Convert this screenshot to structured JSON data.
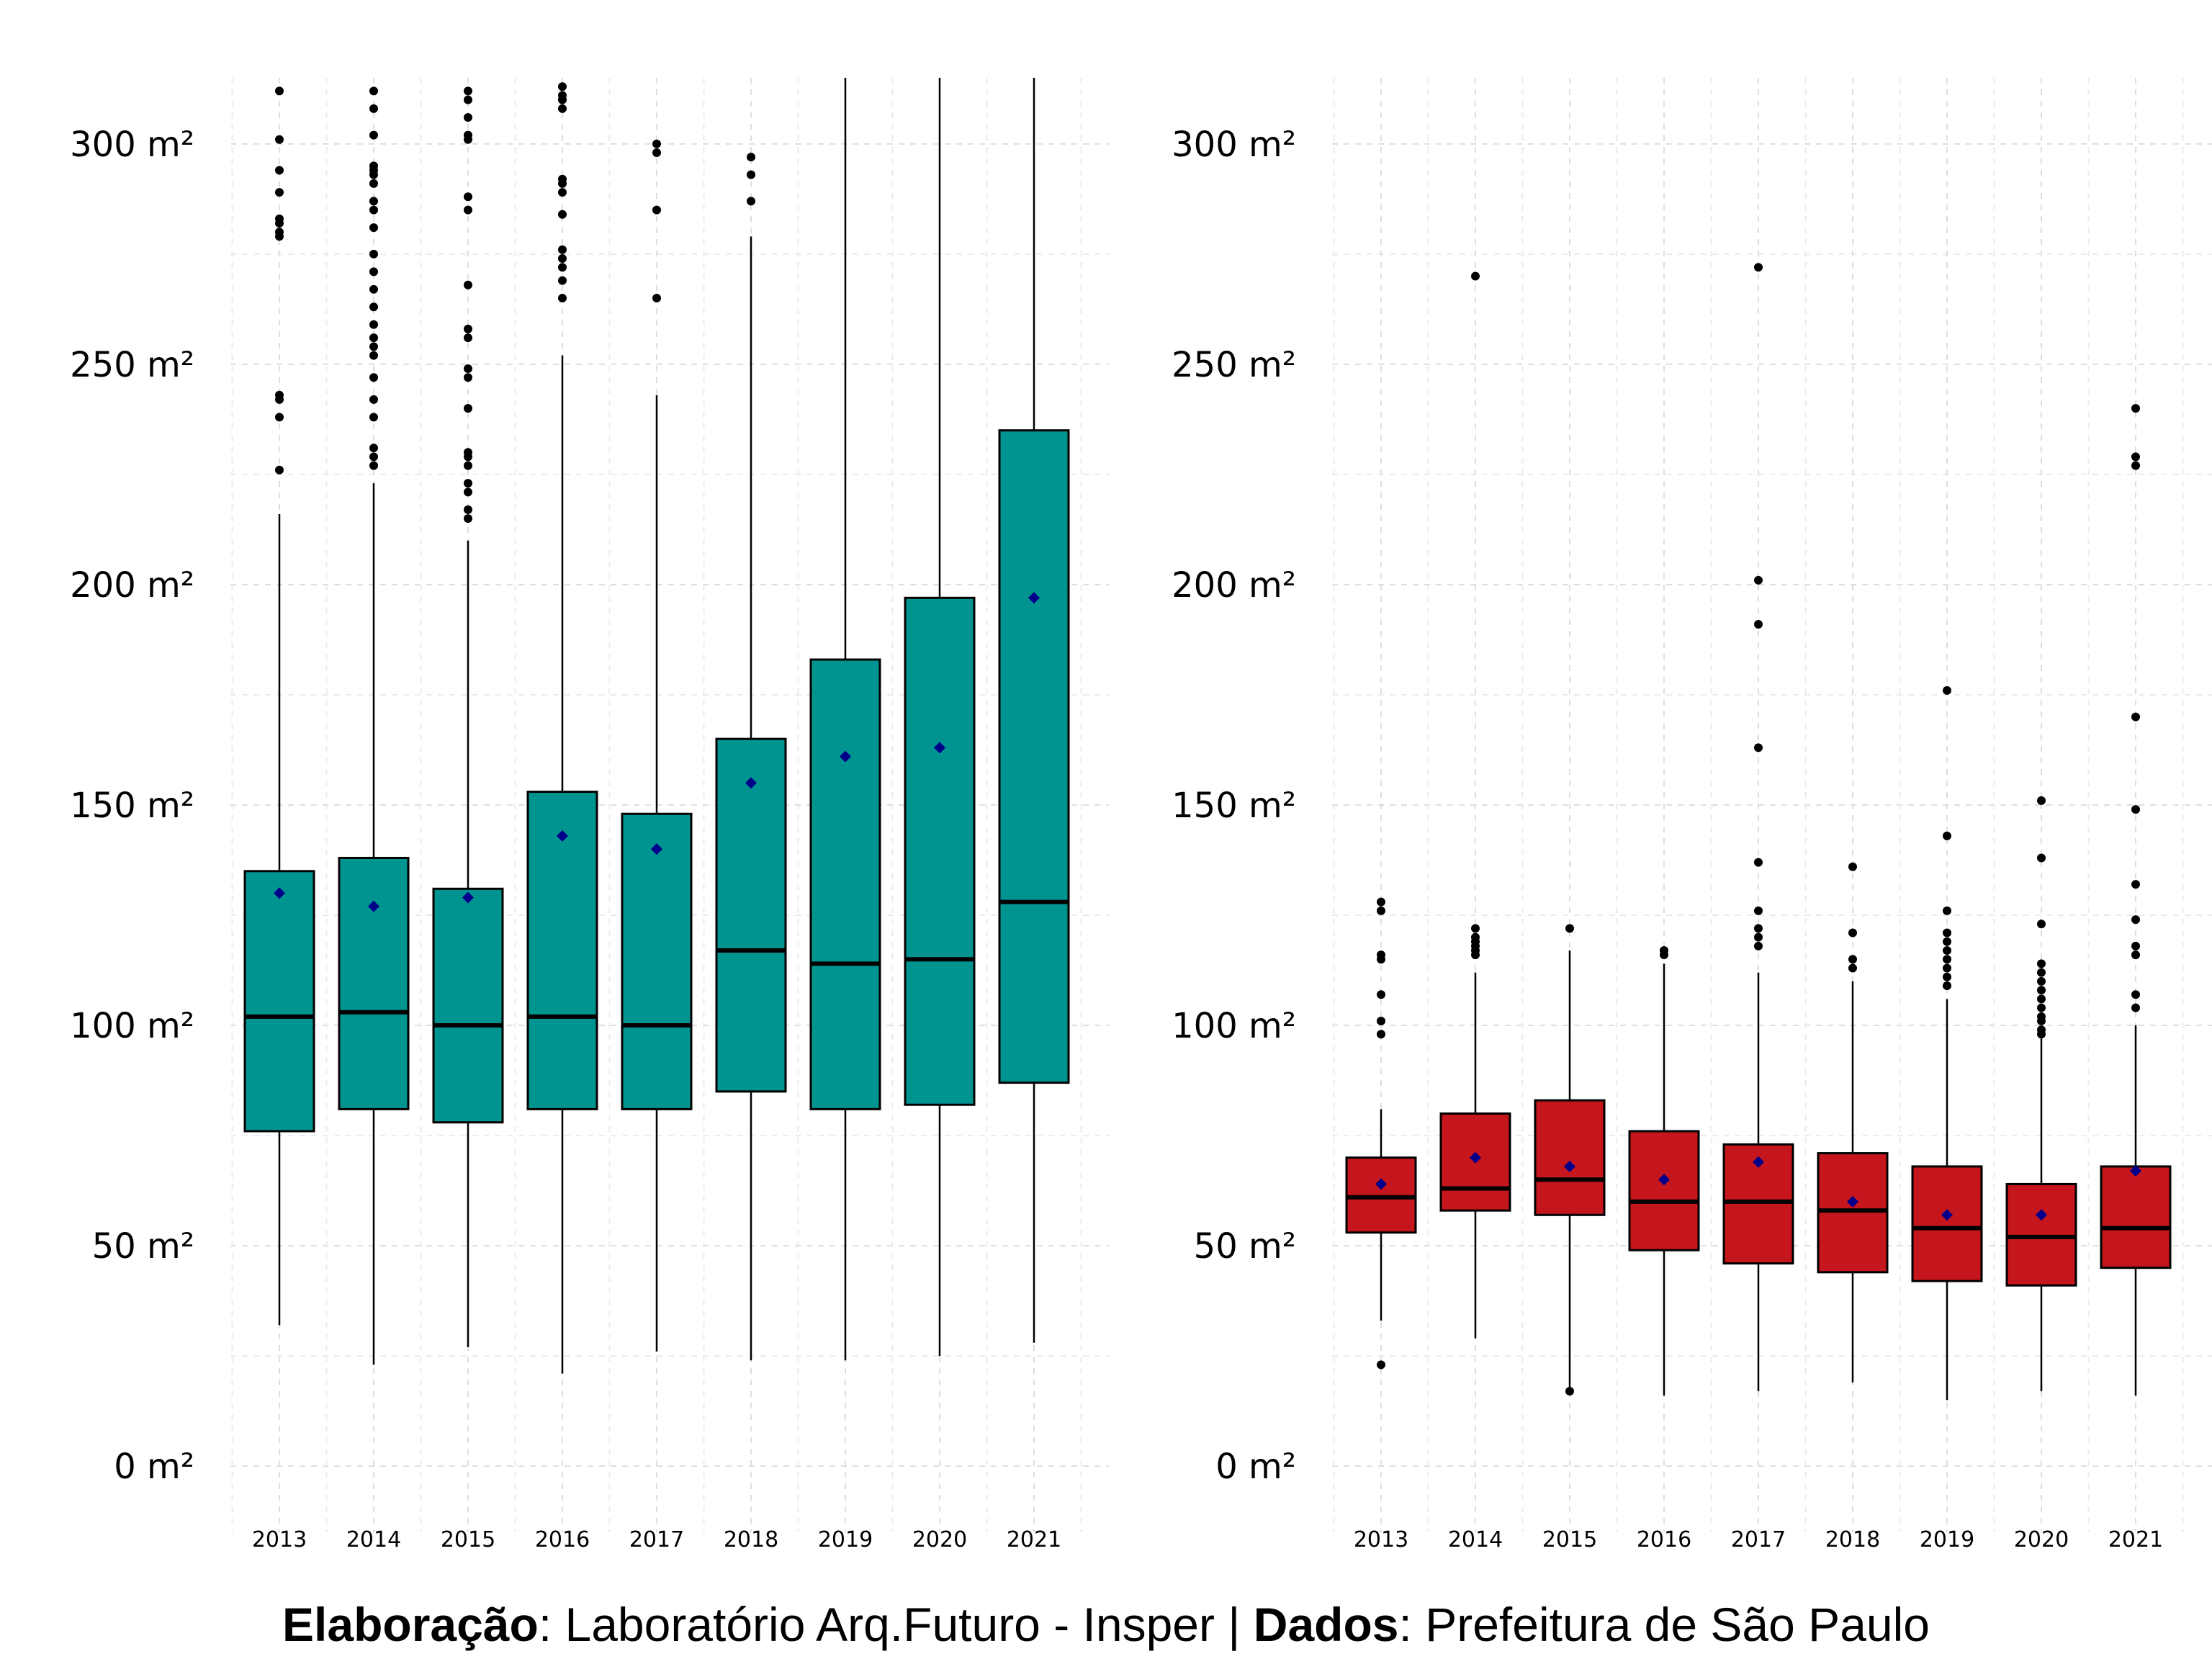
{
  "caption": {
    "elab_label": "Elaboração",
    "elab_value": ": Laboratório Arq.Futuro - Insper | ",
    "data_label": "Dados",
    "data_value": ": Prefeitura de São Paulo"
  },
  "chart_data": [
    {
      "type": "box",
      "categories": [
        "2013",
        "2014",
        "2015",
        "2016",
        "2017",
        "2018",
        "2019",
        "2020",
        "2021"
      ],
      "y_tick_values": [
        0,
        50,
        100,
        150,
        200,
        250,
        300
      ],
      "y_tick_labels": [
        "0 m²",
        "50 m²",
        "100 m²",
        "150 m²",
        "200 m²",
        "250 m²",
        "300 m²"
      ],
      "ylim": [
        -15,
        315
      ],
      "grid": true,
      "colors": {
        "box_fill": "#009490",
        "median": "#000000",
        "mean_marker": "#00008b",
        "outlier": "#000000"
      },
      "boxes": [
        {
          "category": "2013",
          "whisker_low": 32,
          "q1": 76,
          "median": 102,
          "q3": 135,
          "whisker_high": 216,
          "mean": 130,
          "outliers": [
            226,
            238,
            242,
            243,
            279,
            280,
            282,
            283,
            289,
            294,
            301,
            312
          ]
        },
        {
          "category": "2014",
          "whisker_low": 23,
          "q1": 81,
          "median": 103,
          "q3": 138,
          "whisker_high": 223,
          "mean": 127,
          "outliers": [
            227,
            229,
            231,
            238,
            242,
            247,
            252,
            254,
            256,
            259,
            263,
            267,
            271,
            275,
            281,
            285,
            287,
            291,
            293,
            294,
            295,
            302,
            308,
            312
          ]
        },
        {
          "category": "2015",
          "whisker_low": 27,
          "q1": 78,
          "median": 100,
          "q3": 131,
          "whisker_high": 210,
          "mean": 129,
          "outliers": [
            215,
            217,
            221,
            223,
            227,
            229,
            230,
            240,
            247,
            249,
            256,
            258,
            268,
            285,
            288,
            301,
            302,
            306,
            310,
            312
          ]
        },
        {
          "category": "2016",
          "whisker_low": 21,
          "q1": 81,
          "median": 102,
          "q3": 153,
          "whisker_high": 252,
          "mean": 143,
          "outliers": [
            265,
            269,
            272,
            274,
            276,
            284,
            289,
            291,
            292,
            308,
            310,
            311,
            313
          ]
        },
        {
          "category": "2017",
          "whisker_low": 26,
          "q1": 81,
          "median": 100,
          "q3": 148,
          "whisker_high": 243,
          "mean": 140,
          "outliers": [
            265,
            285,
            298,
            300
          ]
        },
        {
          "category": "2018",
          "whisker_low": 24,
          "q1": 85,
          "median": 117,
          "q3": 165,
          "whisker_high": 279,
          "mean": 155,
          "outliers": [
            287,
            293,
            297
          ]
        },
        {
          "category": "2019",
          "whisker_low": 24,
          "q1": 81,
          "median": 114,
          "q3": 183,
          "whisker_high": 315,
          "mean": 161,
          "outliers": []
        },
        {
          "category": "2020",
          "whisker_low": 25,
          "q1": 82,
          "median": 115,
          "q3": 197,
          "whisker_high": 315,
          "mean": 163,
          "outliers": []
        },
        {
          "category": "2021",
          "whisker_low": 28,
          "q1": 87,
          "median": 128,
          "q3": 235,
          "whisker_high": 315,
          "mean": 197,
          "outliers": []
        }
      ]
    },
    {
      "type": "box",
      "categories": [
        "2013",
        "2014",
        "2015",
        "2016",
        "2017",
        "2018",
        "2019",
        "2020",
        "2021"
      ],
      "y_tick_values": [
        0,
        50,
        100,
        150,
        200,
        250,
        300
      ],
      "y_tick_labels": [
        "0 m²",
        "50 m²",
        "100 m²",
        "150 m²",
        "200 m²",
        "250 m²",
        "300 m²"
      ],
      "ylim": [
        -15,
        315
      ],
      "grid": true,
      "colors": {
        "box_fill": "#c4161c",
        "median": "#000000",
        "mean_marker": "#00008b",
        "outlier": "#000000"
      },
      "boxes": [
        {
          "category": "2013",
          "whisker_low": 33,
          "q1": 53,
          "median": 61,
          "q3": 70,
          "whisker_high": 81,
          "mean": 64,
          "outliers": [
            23,
            98,
            101,
            107,
            115,
            116,
            126,
            128
          ]
        },
        {
          "category": "2014",
          "whisker_low": 29,
          "q1": 58,
          "median": 63,
          "q3": 80,
          "whisker_high": 112,
          "mean": 70,
          "outliers": [
            116,
            117,
            118,
            119,
            120,
            122,
            270
          ]
        },
        {
          "category": "2015",
          "whisker_low": 17,
          "q1": 57,
          "median": 65,
          "q3": 83,
          "whisker_high": 117,
          "mean": 68,
          "outliers": [
            17,
            122
          ]
        },
        {
          "category": "2016",
          "whisker_low": 16,
          "q1": 49,
          "median": 60,
          "q3": 76,
          "whisker_high": 114,
          "mean": 65,
          "outliers": [
            116,
            117
          ]
        },
        {
          "category": "2017",
          "whisker_low": 17,
          "q1": 46,
          "median": 60,
          "q3": 73,
          "whisker_high": 112,
          "mean": 69,
          "outliers": [
            118,
            120,
            122,
            126,
            137,
            163,
            191,
            201,
            272
          ]
        },
        {
          "category": "2018",
          "whisker_low": 19,
          "q1": 44,
          "median": 58,
          "q3": 71,
          "whisker_high": 110,
          "mean": 60,
          "outliers": [
            113,
            115,
            121,
            136
          ]
        },
        {
          "category": "2019",
          "whisker_low": 15,
          "q1": 42,
          "median": 54,
          "q3": 68,
          "whisker_high": 106,
          "mean": 57,
          "outliers": [
            109,
            111,
            113,
            115,
            117,
            119,
            121,
            126,
            143,
            176
          ]
        },
        {
          "category": "2020",
          "whisker_low": 17,
          "q1": 41,
          "median": 52,
          "q3": 64,
          "whisker_high": 97,
          "mean": 57,
          "outliers": [
            98,
            99,
            101,
            102,
            104,
            106,
            108,
            110,
            112,
            114,
            123,
            138,
            151
          ]
        },
        {
          "category": "2021",
          "whisker_low": 16,
          "q1": 45,
          "median": 54,
          "q3": 68,
          "whisker_high": 100,
          "mean": 67,
          "outliers": [
            104,
            107,
            116,
            118,
            124,
            132,
            149,
            170,
            227,
            229,
            240
          ]
        }
      ]
    }
  ]
}
